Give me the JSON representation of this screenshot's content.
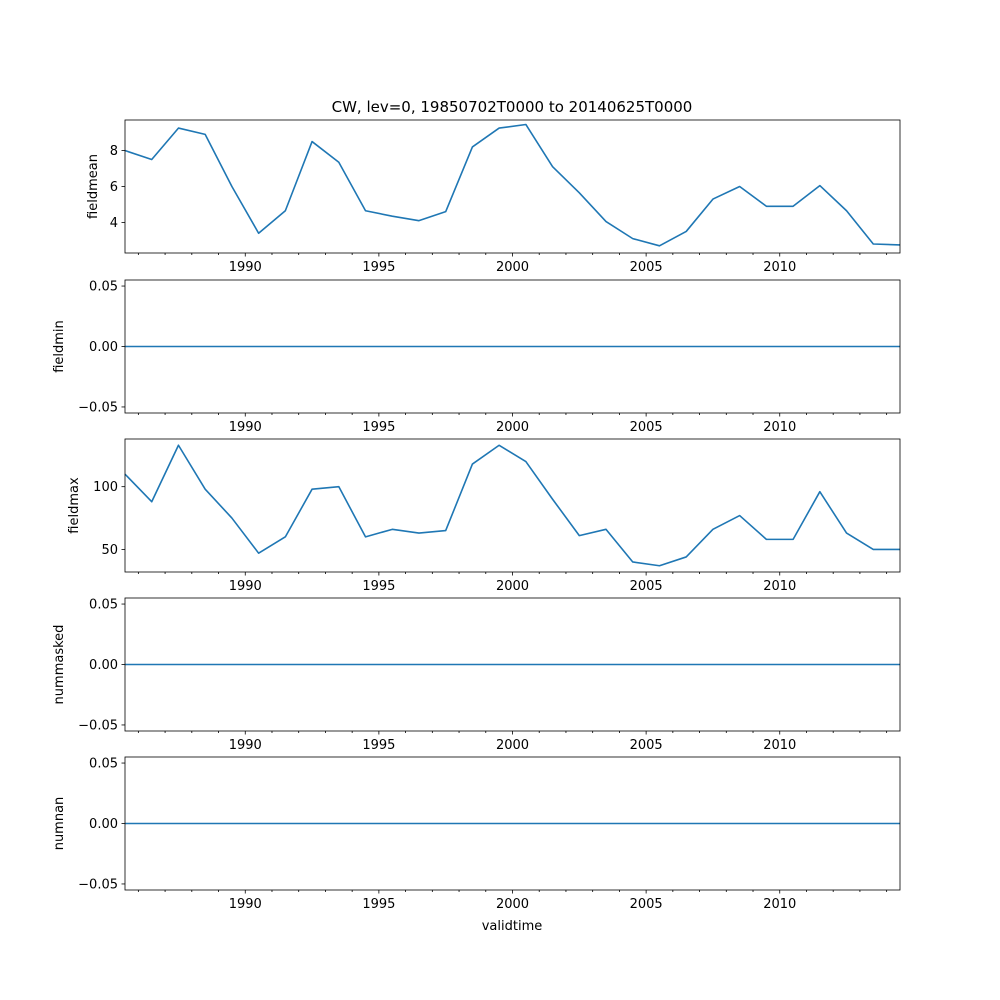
{
  "chart_data": {
    "type": "line",
    "title": "CW, lev=0, 19850702T0000 to 20140625T0000",
    "xlabel": "validtime",
    "xlim": [
      1985.5,
      2014.5
    ],
    "x_ticks": [
      1990,
      1995,
      2000,
      2005,
      2010
    ],
    "x_tick_labels": [
      "1990",
      "1995",
      "2000",
      "2005",
      "2010"
    ],
    "x": [
      1985.5,
      1986.5,
      1987.5,
      1988.5,
      1989.5,
      1990.5,
      1991.5,
      1992.5,
      1993.5,
      1994.5,
      1995.5,
      1996.5,
      1997.5,
      1998.5,
      1999.5,
      2000.5,
      2001.5,
      2002.5,
      2003.5,
      2004.5,
      2005.5,
      2006.5,
      2007.5,
      2008.5,
      2009.5,
      2010.5,
      2011.5,
      2012.5,
      2013.5,
      2014.5
    ],
    "color": "#1f77b4",
    "panels": [
      {
        "ylabel": "fieldmean",
        "ylim": [
          2.3,
          9.7
        ],
        "y_ticks": [
          4,
          6,
          8
        ],
        "y_tick_labels": [
          "4",
          "6",
          "8"
        ],
        "values": [
          8.0,
          7.5,
          9.25,
          8.9,
          6.0,
          3.4,
          4.65,
          8.5,
          7.35,
          4.65,
          4.35,
          4.1,
          4.6,
          8.2,
          9.25,
          9.45,
          7.1,
          5.65,
          4.05,
          3.1,
          2.7,
          3.5,
          5.3,
          6.0,
          4.9,
          4.9,
          6.05,
          4.65,
          2.8,
          2.75
        ]
      },
      {
        "ylabel": "fieldmin",
        "ylim": [
          -0.055,
          0.055
        ],
        "y_ticks": [
          -0.05,
          0.0,
          0.05
        ],
        "y_tick_labels": [
          "−0.05",
          "0.00",
          "0.05"
        ],
        "values": [
          0,
          0,
          0,
          0,
          0,
          0,
          0,
          0,
          0,
          0,
          0,
          0,
          0,
          0,
          0,
          0,
          0,
          0,
          0,
          0,
          0,
          0,
          0,
          0,
          0,
          0,
          0,
          0,
          0,
          0
        ]
      },
      {
        "ylabel": "fieldmax",
        "ylim": [
          32,
          138
        ],
        "y_ticks": [
          50,
          100
        ],
        "y_tick_labels": [
          "50",
          "100"
        ],
        "values": [
          110,
          88,
          133,
          98,
          75,
          47,
          60,
          98,
          100,
          60,
          66,
          63,
          65,
          118,
          133,
          120,
          90,
          61,
          66,
          40,
          37,
          44,
          66,
          77,
          58,
          58,
          96,
          63,
          50,
          50
        ]
      },
      {
        "ylabel": "nummasked",
        "ylim": [
          -0.055,
          0.055
        ],
        "y_ticks": [
          -0.05,
          0.0,
          0.05
        ],
        "y_tick_labels": [
          "−0.05",
          "0.00",
          "0.05"
        ],
        "values": [
          0,
          0,
          0,
          0,
          0,
          0,
          0,
          0,
          0,
          0,
          0,
          0,
          0,
          0,
          0,
          0,
          0,
          0,
          0,
          0,
          0,
          0,
          0,
          0,
          0,
          0,
          0,
          0,
          0,
          0
        ]
      },
      {
        "ylabel": "numnan",
        "ylim": [
          -0.055,
          0.055
        ],
        "y_ticks": [
          -0.05,
          0.0,
          0.05
        ],
        "y_tick_labels": [
          "−0.05",
          "0.00",
          "0.05"
        ],
        "values": [
          0,
          0,
          0,
          0,
          0,
          0,
          0,
          0,
          0,
          0,
          0,
          0,
          0,
          0,
          0,
          0,
          0,
          0,
          0,
          0,
          0,
          0,
          0,
          0,
          0,
          0,
          0,
          0,
          0,
          0
        ]
      }
    ]
  }
}
